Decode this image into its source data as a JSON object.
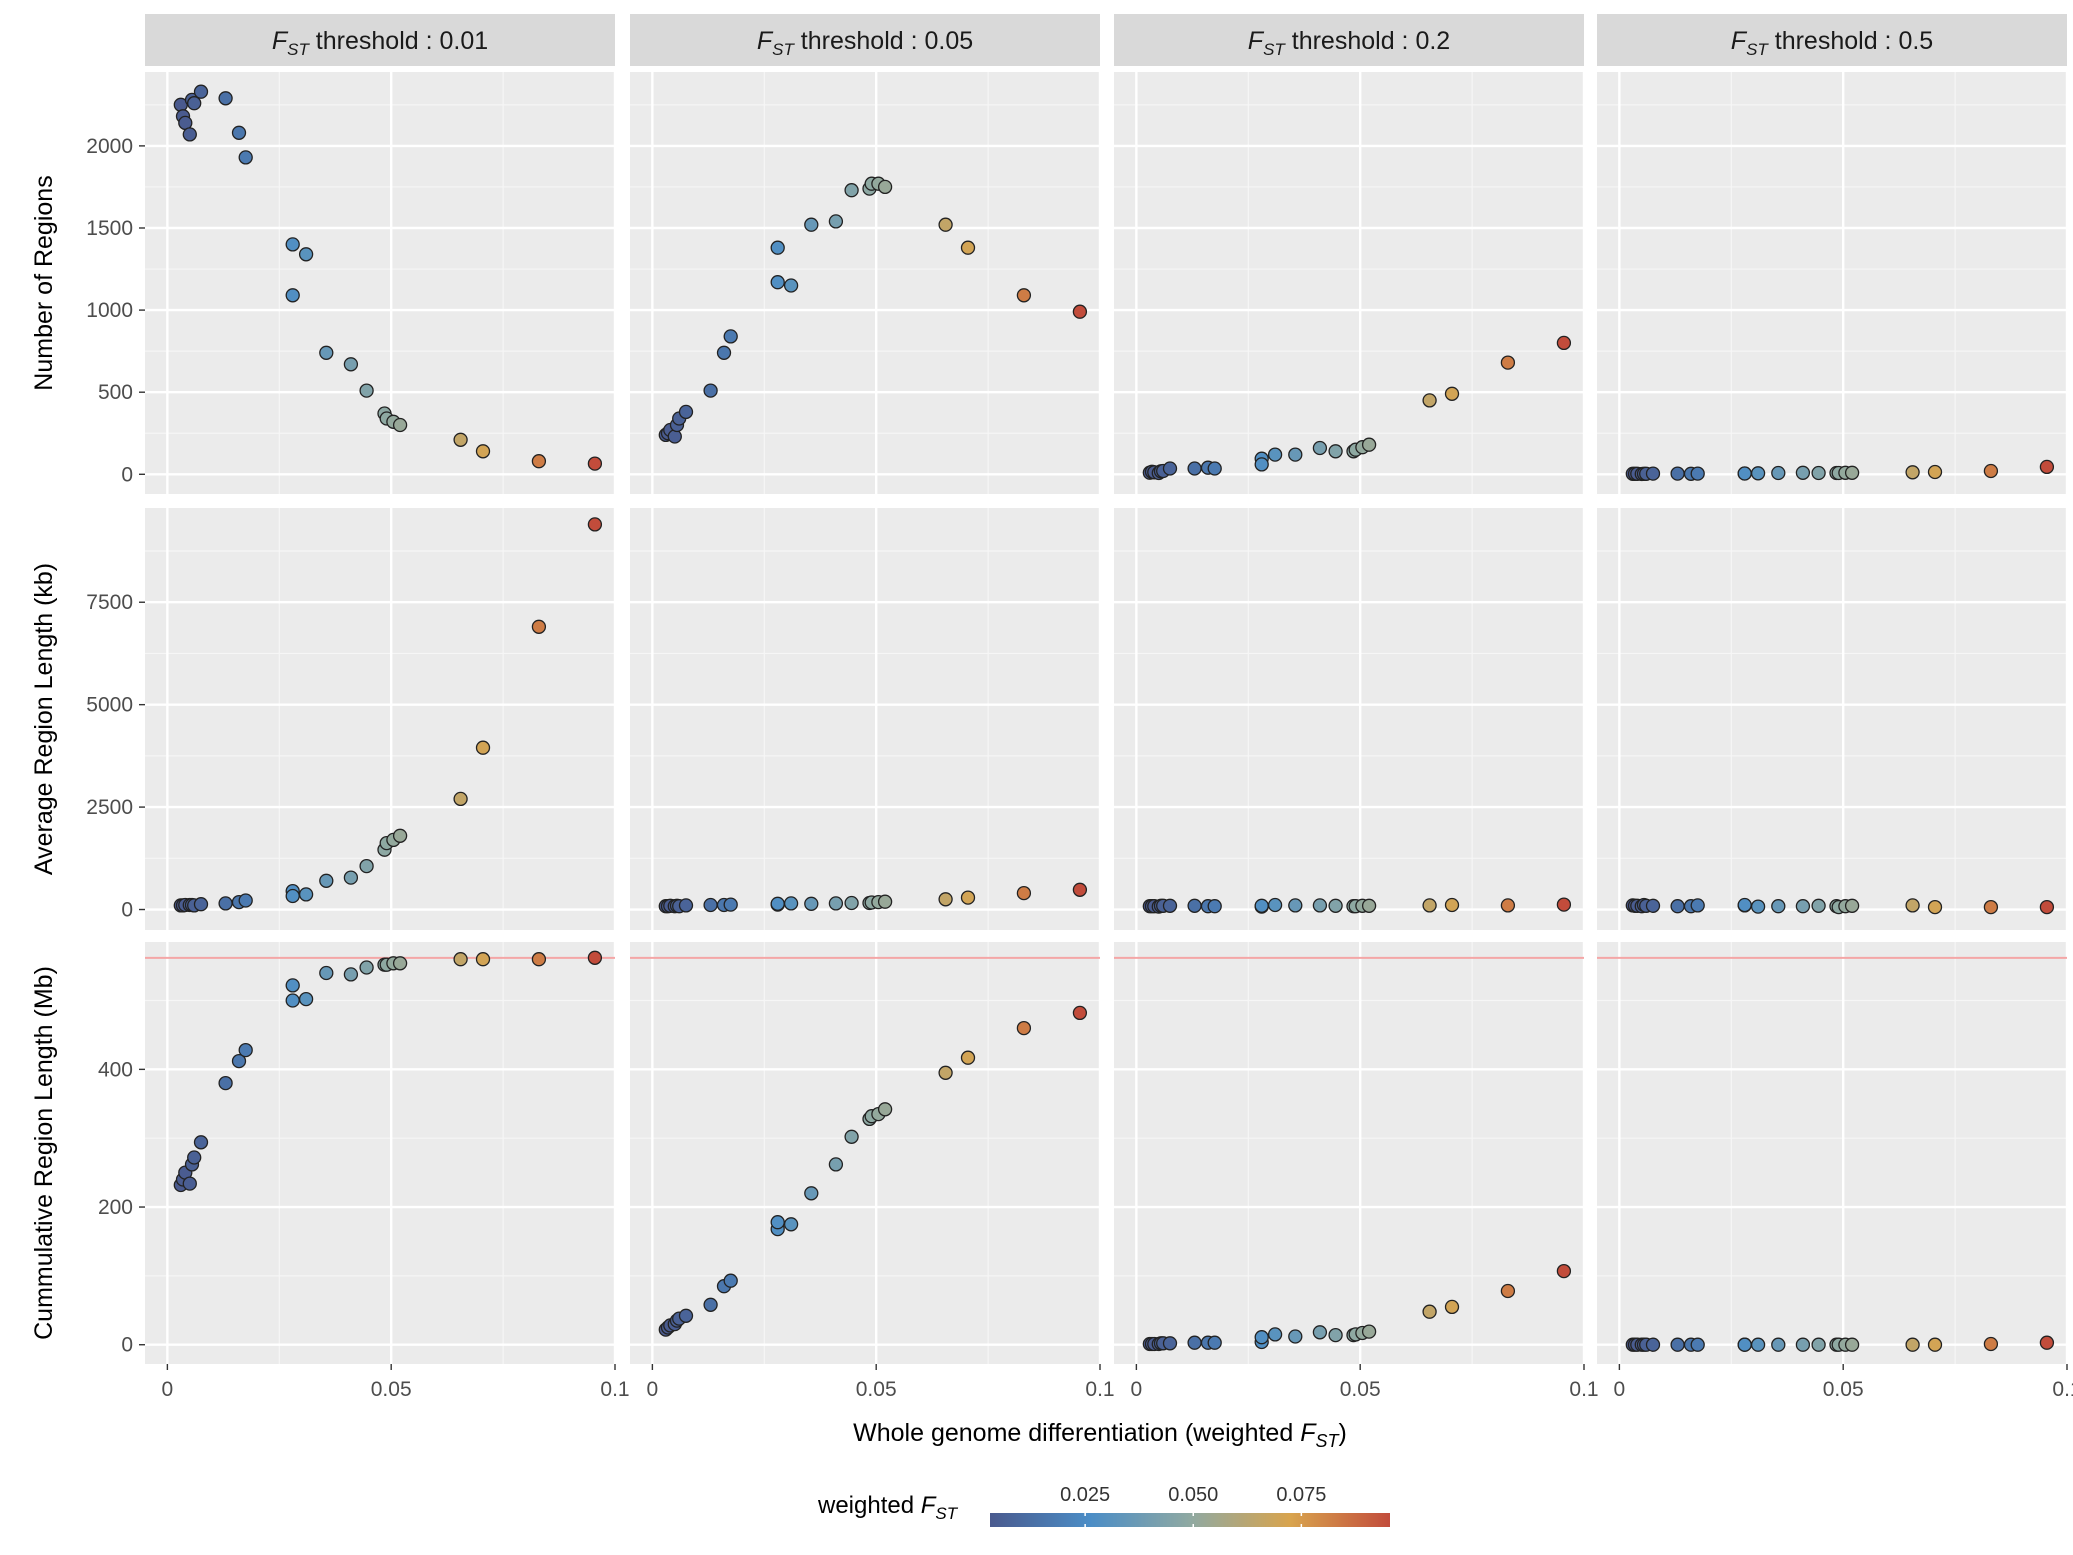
{
  "chart_data": {
    "type": "scatter",
    "facets": {
      "columns": [
        {
          "prefix": "F",
          "subscript": "ST",
          "label": "threshold :  0.01"
        },
        {
          "prefix": "F",
          "subscript": "ST",
          "label": "threshold :  0.05"
        },
        {
          "prefix": "F",
          "subscript": "ST",
          "label": "threshold :  0.2"
        },
        {
          "prefix": "F",
          "subscript": "ST",
          "label": "threshold :  0.5"
        }
      ],
      "rows": [
        {
          "ylabel": "Number of Regions",
          "ylim": [
            -120,
            2450
          ],
          "yticks": [
            0,
            500,
            1000,
            1500,
            2000
          ],
          "yticklabels": [
            "0",
            "500",
            "1000",
            "1500",
            "2000"
          ]
        },
        {
          "ylabel": "Average Region Length (kb)",
          "ylim": [
            -500,
            9800
          ],
          "yticks": [
            0,
            2500,
            5000,
            7500
          ],
          "yticklabels": [
            "0",
            "2500",
            "5000",
            "7500"
          ]
        },
        {
          "ylabel": "Cummulative Region Length (Mb)",
          "ylim": [
            -28,
            585
          ],
          "yticks": [
            0,
            200,
            400
          ],
          "yticklabels": [
            "0",
            "200",
            "400"
          ],
          "hline": 562,
          "hline_color": "#f4a6a6"
        }
      ]
    },
    "x_shared": {
      "xlim": [
        -0.005,
        0.1
      ],
      "xticks": [
        0,
        0.05,
        0.1
      ],
      "xticklabels": [
        "0",
        "0.05",
        "0.1"
      ],
      "xlabel_main": "Whole  genome differentiation (weighted ",
      "xlabel_sym": "F",
      "xlabel_sub": "ST",
      "xlabel_end": ")"
    },
    "x": [
      0.003,
      0.0035,
      0.004,
      0.005,
      0.0055,
      0.006,
      0.0075,
      0.013,
      0.016,
      0.0175,
      0.028,
      0.028,
      0.031,
      0.0355,
      0.041,
      0.0445,
      0.0485,
      0.049,
      0.0505,
      0.052,
      0.0655,
      0.0705,
      0.083,
      0.0955
    ],
    "series": [
      {
        "row": 0,
        "col": 0,
        "values": [
          2250,
          2180,
          2140,
          2070,
          2280,
          2260,
          2330,
          2290,
          2080,
          1930,
          1400,
          1090,
          1340,
          740,
          670,
          510,
          370,
          340,
          320,
          300,
          210,
          140,
          80,
          65
        ]
      },
      {
        "row": 0,
        "col": 1,
        "values": [
          240,
          250,
          270,
          230,
          300,
          340,
          380,
          510,
          740,
          840,
          1380,
          1170,
          1150,
          1520,
          1540,
          1730,
          1740,
          1770,
          1770,
          1750,
          1520,
          1380,
          1090,
          990
        ]
      },
      {
        "row": 0,
        "col": 2,
        "values": [
          10,
          15,
          12,
          8,
          18,
          20,
          35,
          35,
          40,
          35,
          95,
          60,
          120,
          120,
          160,
          140,
          140,
          150,
          165,
          180,
          450,
          490,
          680,
          800
        ]
      },
      {
        "row": 0,
        "col": 3,
        "values": [
          3,
          3,
          3,
          2,
          3,
          3,
          4,
          4,
          3,
          4,
          5,
          5,
          6,
          8,
          9,
          8,
          8,
          8,
          9,
          9,
          12,
          14,
          20,
          45
        ]
      },
      {
        "row": 1,
        "col": 0,
        "values": [
          100,
          100,
          110,
          110,
          110,
          100,
          130,
          150,
          180,
          220,
          450,
          330,
          370,
          700,
          780,
          1060,
          1460,
          1620,
          1700,
          1800,
          2700,
          3950,
          6900,
          9400
        ]
      },
      {
        "row": 1,
        "col": 1,
        "values": [
          80,
          80,
          90,
          80,
          90,
          80,
          100,
          110,
          110,
          120,
          120,
          140,
          150,
          140,
          150,
          160,
          160,
          170,
          180,
          190,
          250,
          290,
          400,
          480
        ]
      },
      {
        "row": 1,
        "col": 2,
        "values": [
          80,
          80,
          80,
          70,
          90,
          90,
          90,
          90,
          80,
          80,
          70,
          90,
          110,
          100,
          100,
          90,
          80,
          80,
          90,
          90,
          100,
          110,
          100,
          120
        ]
      },
      {
        "row": 1,
        "col": 3,
        "values": [
          100,
          90,
          90,
          80,
          110,
          90,
          90,
          80,
          80,
          100,
          100,
          110,
          70,
          80,
          80,
          90,
          80,
          60,
          80,
          90,
          100,
          60,
          60,
          60
        ]
      },
      {
        "row": 2,
        "col": 0,
        "values": [
          232,
          240,
          250,
          234,
          262,
          272,
          294,
          380,
          412,
          428,
          522,
          500,
          502,
          540,
          538,
          548,
          552,
          552,
          554,
          554,
          560,
          560,
          560,
          562
        ]
      },
      {
        "row": 2,
        "col": 1,
        "values": [
          22,
          25,
          28,
          30,
          35,
          38,
          42,
          58,
          85,
          93,
          168,
          178,
          175,
          220,
          262,
          302,
          328,
          332,
          335,
          342,
          395,
          417,
          460,
          482
        ]
      },
      {
        "row": 2,
        "col": 2,
        "values": [
          1,
          1,
          1,
          1,
          2,
          2,
          2,
          3,
          3,
          3,
          4,
          11,
          15,
          12,
          18,
          14,
          14,
          15,
          17,
          19,
          48,
          55,
          78,
          107
        ]
      },
      {
        "row": 2,
        "col": 3,
        "values": [
          0,
          0,
          0,
          0,
          0,
          0,
          0,
          0,
          0,
          0,
          0,
          0,
          0,
          0,
          0,
          0,
          0,
          0,
          0,
          0,
          0,
          0,
          1,
          3
        ]
      }
    ],
    "colorbar": {
      "title_main": "weighted ",
      "title_sym": "F",
      "title_sub": "ST",
      "range": [
        0.003,
        0.0955
      ],
      "ticks": [
        0.025,
        0.05,
        0.075
      ],
      "ticklabels": [
        "0.025",
        "0.050",
        "0.075"
      ],
      "colors": [
        "#4a5a8e",
        "#4b8dc6",
        "#8fa9a2",
        "#d8a44e",
        "#c24c3b"
      ]
    },
    "grid": true,
    "legend": "bottom"
  }
}
